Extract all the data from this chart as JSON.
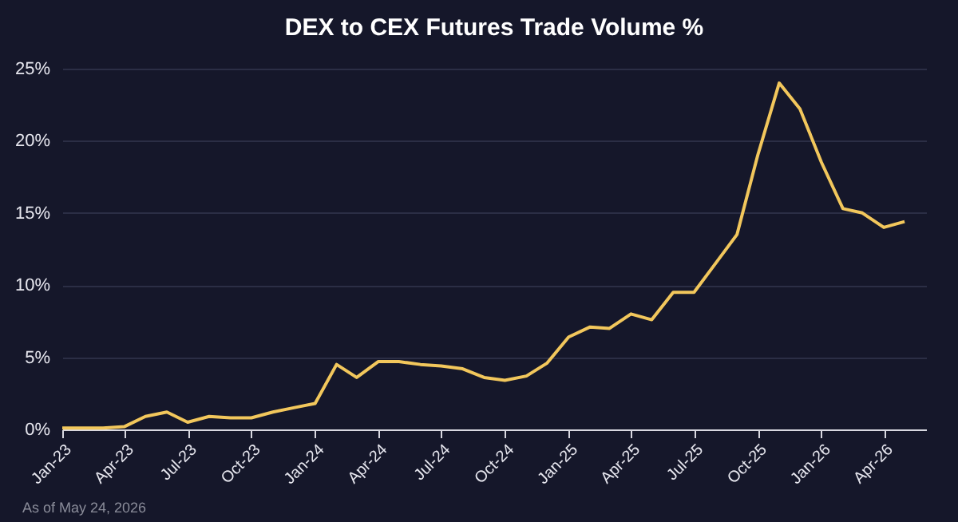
{
  "chart_data": {
    "type": "line",
    "title": "DEX to CEX Futures Trade Volume %",
    "x": [
      "2023-01",
      "2023-02",
      "2023-03",
      "2023-04",
      "2023-05",
      "2023-06",
      "2023-07",
      "2023-08",
      "2023-09",
      "2023-10",
      "2023-11",
      "2023-12",
      "2024-01",
      "2024-02",
      "2024-03",
      "2024-04",
      "2024-05",
      "2024-06",
      "2024-07",
      "2024-08",
      "2024-09",
      "2024-10",
      "2024-11",
      "2024-12",
      "2025-01",
      "2025-02",
      "2025-03",
      "2025-04",
      "2025-05",
      "2025-06",
      "2025-07",
      "2025-08",
      "2025-09",
      "2025-10",
      "2025-11",
      "2025-12",
      "2026-01",
      "2026-02",
      "2026-03",
      "2026-04",
      "2026-05"
    ],
    "series": [
      {
        "color": "#f2c75c",
        "values": [
          0.1,
          0.1,
          0.1,
          0.2,
          0.9,
          1.2,
          0.5,
          0.9,
          0.8,
          0.8,
          1.2,
          1.5,
          1.8,
          4.5,
          3.6,
          4.7,
          4.7,
          4.5,
          4.4,
          4.2,
          3.6,
          3.4,
          3.7,
          4.6,
          6.4,
          7.1,
          7.0,
          8.0,
          7.6,
          9.5,
          9.5,
          11.5,
          13.5,
          19.0,
          24.0,
          22.2,
          18.5,
          15.3,
          15.0,
          14.0,
          14.4
        ]
      }
    ],
    "xlim": [
      "2023-01",
      "2026-06"
    ],
    "xticks": [
      {
        "value": "2023-01",
        "label": "Jan-23"
      },
      {
        "value": "2023-04",
        "label": "Apr-23"
      },
      {
        "value": "2023-07",
        "label": "Jul-23"
      },
      {
        "value": "2023-10",
        "label": "Oct-23"
      },
      {
        "value": "2024-01",
        "label": "Jan-24"
      },
      {
        "value": "2024-04",
        "label": "Apr-24"
      },
      {
        "value": "2024-07",
        "label": "Jul-24"
      },
      {
        "value": "2024-10",
        "label": "Oct-24"
      },
      {
        "value": "2025-01",
        "label": "Jan-25"
      },
      {
        "value": "2025-04",
        "label": "Apr-25"
      },
      {
        "value": "2025-07",
        "label": "Jul-25"
      },
      {
        "value": "2025-10",
        "label": "Oct-25"
      },
      {
        "value": "2026-01",
        "label": "Jan-26"
      },
      {
        "value": "2026-04",
        "label": "Apr-26"
      }
    ],
    "ylim": [
      0,
      25
    ],
    "yticks": [
      {
        "value": 0,
        "label": "0%"
      },
      {
        "value": 5,
        "label": "5%"
      },
      {
        "value": 10,
        "label": "10%"
      },
      {
        "value": 15,
        "label": "15%"
      },
      {
        "value": 20,
        "label": "20%"
      },
      {
        "value": 25,
        "label": "25%"
      }
    ],
    "grid": "y",
    "marker": "none",
    "line_style": "solid",
    "annotations": [
      "As of May 24, 2026"
    ]
  }
}
